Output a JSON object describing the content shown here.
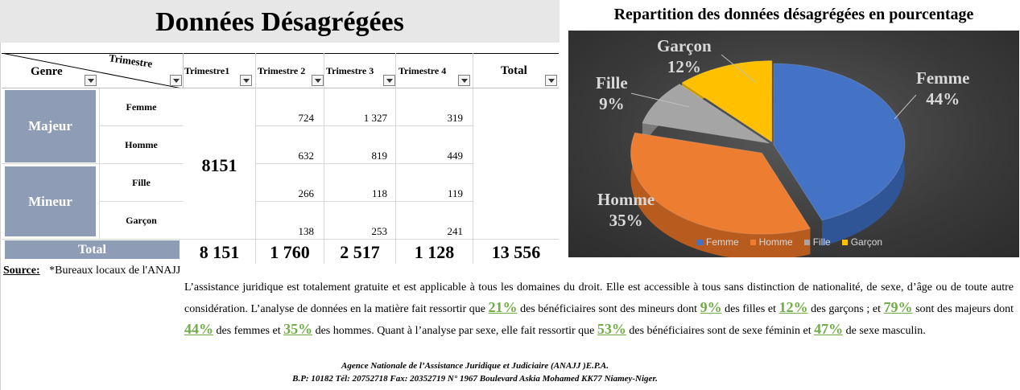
{
  "title": "Données Désagrégées",
  "table": {
    "header": {
      "genre": "Genre",
      "trimestre": "Trimestre",
      "columns": [
        "Trimestre1",
        "Trimestre 2",
        "Trimestre 3",
        "Trimestre 4",
        "Total"
      ]
    },
    "groups": [
      {
        "label": "Majeur",
        "rows": [
          {
            "label": "Femme",
            "t2": "724",
            "t3": "1 327",
            "t4": "319"
          },
          {
            "label": "Homme",
            "t2": "632",
            "t3": "819",
            "t4": "449"
          }
        ]
      },
      {
        "label": "Mineur",
        "rows": [
          {
            "label": "Fille",
            "t2": "266",
            "t3": "118",
            "t4": "119"
          },
          {
            "label": "Garçon",
            "t2": "138",
            "t3": "253",
            "t4": "241"
          }
        ]
      }
    ],
    "t1_merged": "8151",
    "total_row": {
      "label": "Total",
      "t1": "8 151",
      "t2": "1 760",
      "t3": "2 517",
      "t4": "1 128",
      "total": "13 556"
    }
  },
  "chart_data": {
    "type": "pie",
    "title": "Repartition des données désagrégées en pourcentage",
    "categories": [
      "Femme",
      "Homme",
      "Fille",
      "Garçon"
    ],
    "values": [
      44,
      35,
      9,
      12
    ],
    "labels": [
      "44%",
      "35%",
      "9%",
      "12%"
    ],
    "colors": [
      "#4472c4",
      "#ed7d31",
      "#a5a5a5",
      "#ffc000"
    ],
    "legend_position": "bottom"
  },
  "source": {
    "label": "Source:",
    "text": "*Bureaux locaux de l'ANAJJ"
  },
  "paragraph": {
    "p1": "L’assistance juridique est totalement gratuite et est applicable à tous les domaines du droit. Elle est accessible à tous sans distinction de nationalité, de sexe, d’âge ou de toute autre considération. L’analyse de données en la matière fait ressortir que ",
    "v1": "21%",
    "p2": " des bénéficiaires sont des mineurs dont ",
    "v2": "9%",
    "p3": " des filles et ",
    "v3": "12%",
    "p4": " des garçons ; et ",
    "v4": "79%",
    "p5": "  sont des majeurs dont ",
    "v5": "44%",
    "p6": " des femmes et ",
    "v6": "35%",
    "p7": " des hommes. Quant à l’analyse par sexe, elle fait ressortir que ",
    "v7": "53%",
    "p8": " des bénéficiaires sont de sexe féminin et ",
    "v8": "47%",
    "p9": " de sexe masculin."
  },
  "footer": {
    "line1": "Agence Nationale de l’Assistance Juridique et Judiciaire (ANAJJ )E.P.A.",
    "line2": "B.P: 10182 Tél: 20752718 Fax: 20352719 N° 1967 Boulevard Askia Mohamed KK77 Niamey-Niger."
  }
}
